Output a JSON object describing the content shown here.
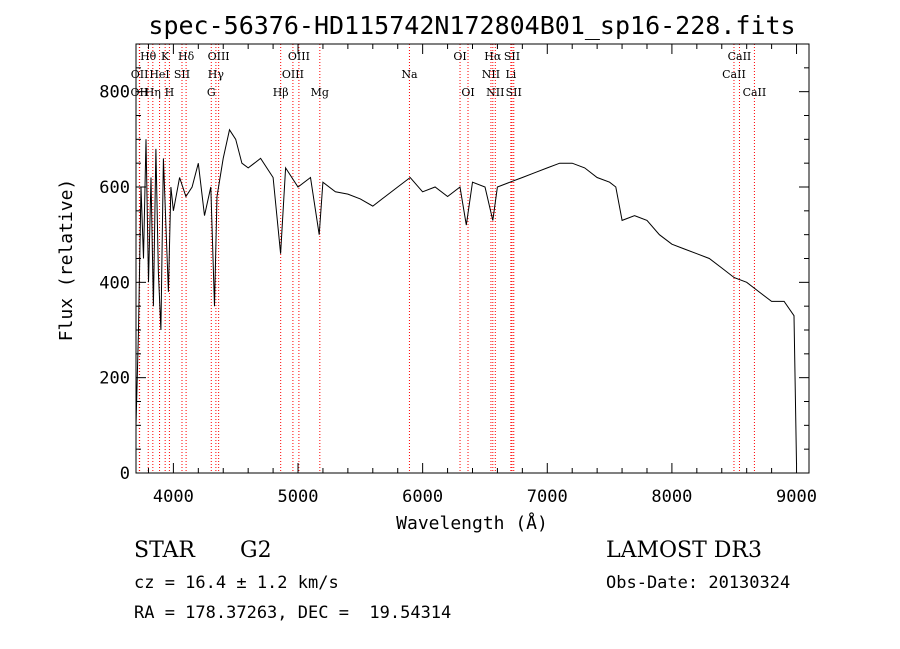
{
  "chart_data": {
    "type": "line",
    "title": "spec-56376-HD115742N172804B01_sp16-228.fits",
    "xlabel": "Wavelength (Å)",
    "ylabel": "Flux (relative)",
    "xlim": [
      3700,
      9100
    ],
    "ylim": [
      0,
      900
    ],
    "xticks": [
      4000,
      5000,
      6000,
      7000,
      8000,
      9000
    ],
    "yticks": [
      0,
      200,
      400,
      600,
      800
    ],
    "line_color": "#ff0000",
    "series": [
      {
        "name": "flux",
        "x": [
          3700,
          3720,
          3740,
          3760,
          3780,
          3800,
          3820,
          3840,
          3860,
          3880,
          3900,
          3920,
          3940,
          3960,
          3980,
          4000,
          4050,
          4100,
          4150,
          4200,
          4250,
          4300,
          4330,
          4350,
          4400,
          4450,
          4500,
          4550,
          4600,
          4700,
          4800,
          4860,
          4900,
          5000,
          5100,
          5170,
          5200,
          5300,
          5400,
          5500,
          5600,
          5700,
          5800,
          5900,
          6000,
          6100,
          6200,
          6300,
          6350,
          6400,
          6500,
          6563,
          6600,
          6700,
          6800,
          6900,
          7000,
          7100,
          7200,
          7300,
          7400,
          7500,
          7550,
          7600,
          7700,
          7800,
          7900,
          8000,
          8100,
          8200,
          8300,
          8400,
          8500,
          8600,
          8700,
          8800,
          8900,
          8980,
          9000
        ],
        "y": [
          100,
          300,
          600,
          450,
          700,
          400,
          620,
          350,
          680,
          420,
          300,
          660,
          520,
          380,
          600,
          550,
          620,
          580,
          600,
          650,
          540,
          600,
          350,
          580,
          660,
          720,
          700,
          650,
          640,
          660,
          620,
          460,
          640,
          600,
          620,
          500,
          610,
          590,
          585,
          575,
          560,
          580,
          600,
          620,
          590,
          600,
          580,
          600,
          520,
          610,
          600,
          530,
          600,
          610,
          620,
          630,
          640,
          650,
          650,
          640,
          620,
          610,
          600,
          530,
          540,
          530,
          500,
          480,
          470,
          460,
          450,
          430,
          410,
          400,
          380,
          360,
          360,
          330,
          20
        ]
      }
    ],
    "lines": [
      {
        "label": "OII",
        "x": 3727,
        "row": 2
      },
      {
        "label": "OII",
        "x": 3729,
        "row": 1
      },
      {
        "label": "Hθ",
        "x": 3798,
        "row": 0
      },
      {
        "label": "Hη",
        "x": 3835,
        "row": 2
      },
      {
        "label": "HeI",
        "x": 3889,
        "row": 1
      },
      {
        "label": "K",
        "x": 3934,
        "row": 0
      },
      {
        "label": "H",
        "x": 3968,
        "row": 2
      },
      {
        "label": "SII",
        "x": 4069,
        "row": 1
      },
      {
        "label": "Hδ",
        "x": 4102,
        "row": 0
      },
      {
        "label": "G",
        "x": 4304,
        "row": 2
      },
      {
        "label": "Hγ",
        "x": 4341,
        "row": 1
      },
      {
        "label": "OIII",
        "x": 4363,
        "row": 0
      },
      {
        "label": "Hβ",
        "x": 4861,
        "row": 2
      },
      {
        "label": "OIII",
        "x": 4959,
        "row": 1
      },
      {
        "label": "OIII",
        "x": 5007,
        "row": 0
      },
      {
        "label": "Mg",
        "x": 5175,
        "row": 2
      },
      {
        "label": "Na",
        "x": 5894,
        "row": 1
      },
      {
        "label": "OI",
        "x": 6300,
        "row": 0
      },
      {
        "label": "OI",
        "x": 6364,
        "row": 2
      },
      {
        "label": "NII",
        "x": 6548,
        "row": 1
      },
      {
        "label": "Hα",
        "x": 6563,
        "row": 0
      },
      {
        "label": "NII",
        "x": 6583,
        "row": 2
      },
      {
        "label": "Li",
        "x": 6708,
        "row": 1
      },
      {
        "label": "SII",
        "x": 6717,
        "row": 0
      },
      {
        "label": "SII",
        "x": 6731,
        "row": 2
      },
      {
        "label": "CaII",
        "x": 8498,
        "row": 1
      },
      {
        "label": "CaII",
        "x": 8542,
        "row": 0
      },
      {
        "label": "CaII",
        "x": 8662,
        "row": 2
      }
    ]
  },
  "info": {
    "object_class": "STAR",
    "subclass": "G2",
    "redshift": "cz = 16.4 ± 1.2 km/s",
    "coords": "RA = 178.37263, DEC =  19.54314",
    "survey": "LAMOST DR3",
    "obs_date": "Obs-Date: 20130324"
  }
}
